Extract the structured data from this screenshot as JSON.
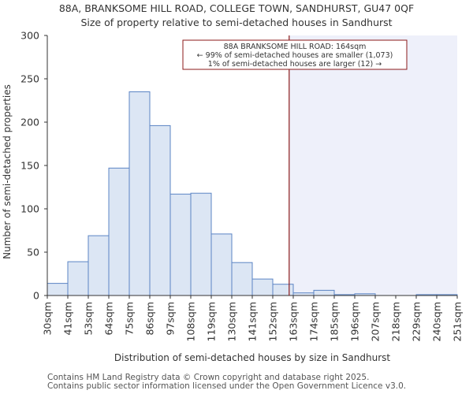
{
  "chart_data": {
    "type": "bar",
    "title": "88A, BRANKSOME HILL ROAD, COLLEGE TOWN, SANDHURST, GU47 0QF",
    "subtitle": "Size of property relative to semi-detached houses in Sandhurst",
    "xlabel": "Distribution of semi-detached houses by size in Sandhurst",
    "ylabel": "Number of semi-detached properties",
    "ylim": [
      0,
      300
    ],
    "yticks": [
      0,
      50,
      100,
      150,
      200,
      250,
      300
    ],
    "tick_labels": [
      "30sqm",
      "41sqm",
      "53sqm",
      "64sqm",
      "75sqm",
      "86sqm",
      "97sqm",
      "108sqm",
      "119sqm",
      "130sqm",
      "141sqm",
      "152sqm",
      "163sqm",
      "174sqm",
      "185sqm",
      "196sqm",
      "207sqm",
      "218sqm",
      "229sqm",
      "240sqm",
      "251sqm"
    ],
    "values": [
      14,
      39,
      69,
      147,
      235,
      196,
      117,
      118,
      71,
      38,
      19,
      13,
      3,
      6,
      1,
      2,
      0,
      0,
      1,
      1
    ],
    "marker": {
      "bin_position": 11.8,
      "label_line1": "88A BRANKSOME HILL ROAD: 164sqm",
      "label_line2": "← 99% of semi-detached houses are smaller (1,073)",
      "label_line3": "1% of semi-detached houses are larger (12) →"
    },
    "grid": false,
    "colors": {
      "bar_fill": "#dce6f4",
      "bar_stroke": "#5b84c4",
      "marker_line": "#8b1a1a",
      "shade": "#eef0fa",
      "axis": "#333333"
    }
  },
  "footer": {
    "line1": "Contains HM Land Registry data © Crown copyright and database right 2025.",
    "line2": "Contains public sector information licensed under the Open Government Licence v3.0."
  }
}
